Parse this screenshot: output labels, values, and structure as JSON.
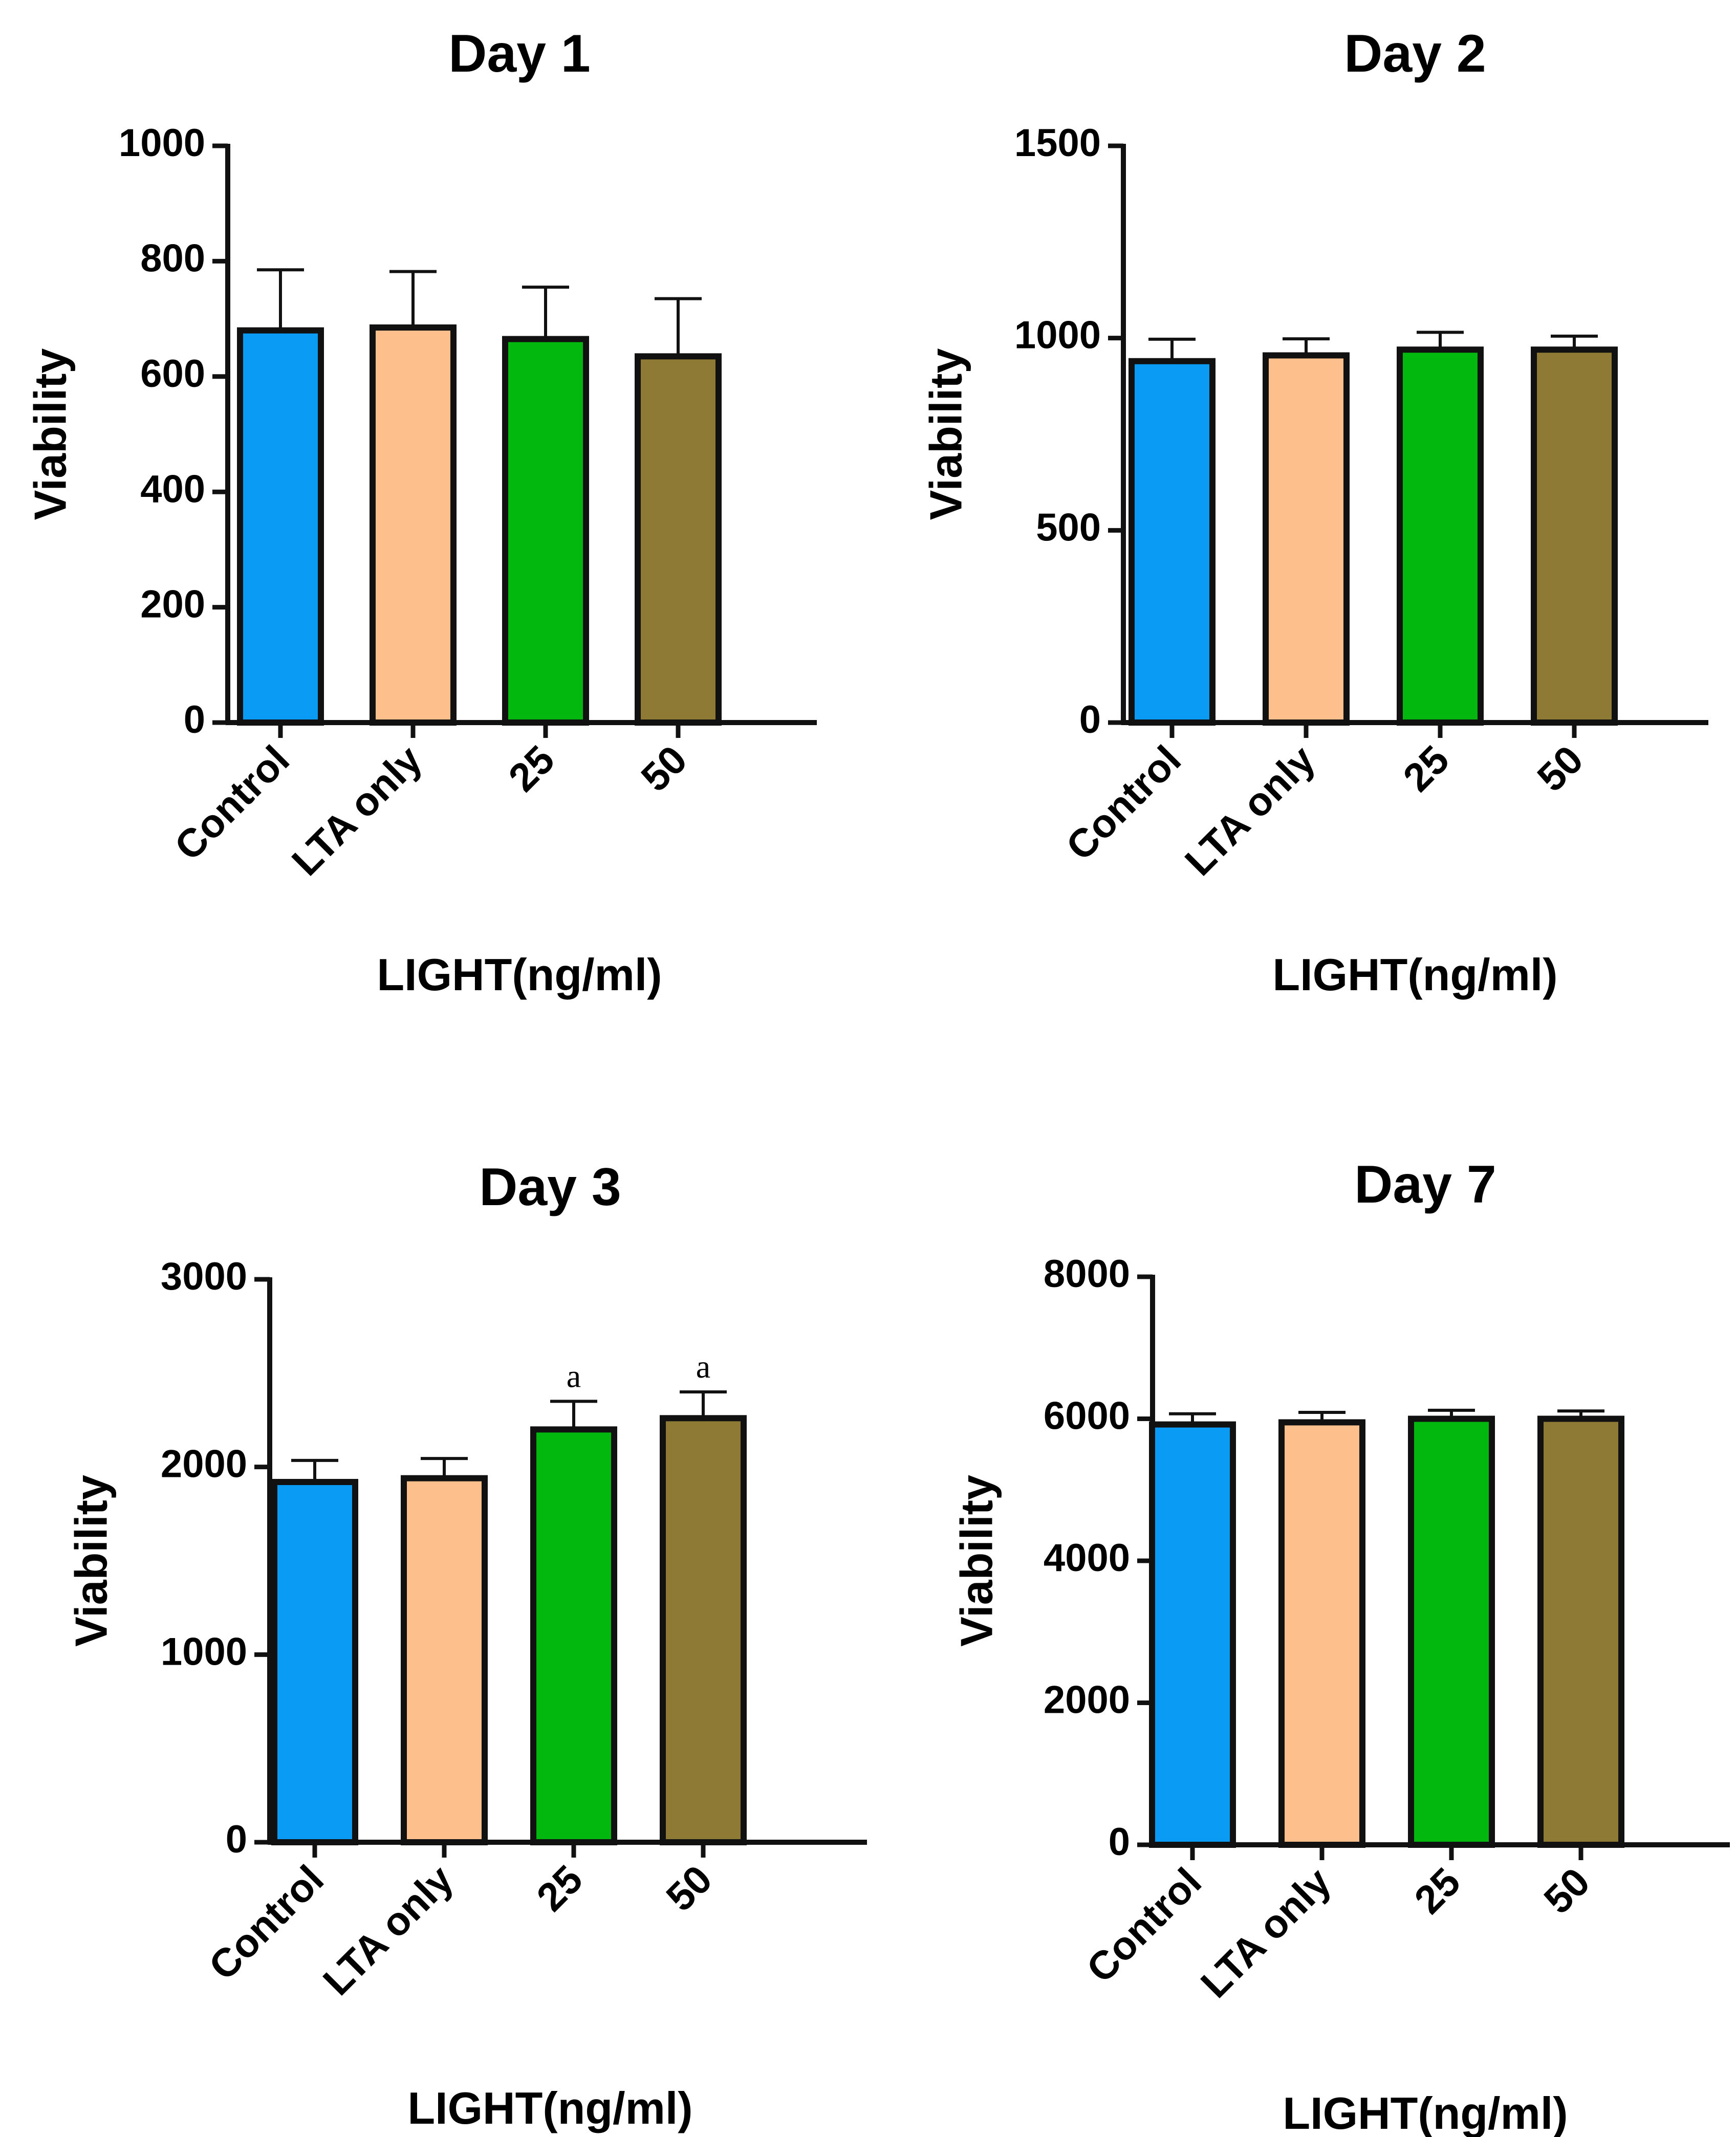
{
  "colors": {
    "control": "#0a9cf5",
    "lta_only": "#fdc08c",
    "light_25": "#02b80e",
    "light_50": "#8e7a34",
    "outline": "#111111"
  },
  "chart_data": [
    {
      "type": "bar",
      "title": "Day 1",
      "xlabel": "LIGHT(ng/ml)",
      "ylabel": "Viability",
      "categories": [
        "Control",
        "LTA only",
        "25",
        "50"
      ],
      "values": [
        680,
        685,
        665,
        635
      ],
      "errors": [
        105,
        97,
        90,
        100
      ],
      "annotations": [
        "",
        "",
        "",
        ""
      ],
      "ylim": [
        0,
        1000
      ],
      "yticks": [
        "0",
        "200",
        "400",
        "600",
        "800",
        "1000"
      ],
      "grid": false,
      "legend": "none"
    },
    {
      "type": "bar",
      "title": "Day 2",
      "xlabel": "LIGHT(ng/ml)",
      "ylabel": "Viability",
      "categories": [
        "Control",
        "LTA only",
        "25",
        "50"
      ],
      "values": [
        940,
        955,
        970,
        970
      ],
      "errors": [
        57,
        43,
        45,
        35
      ],
      "annotations": [
        "",
        "",
        "",
        ""
      ],
      "ylim": [
        0,
        1500
      ],
      "yticks": [
        "0",
        "500",
        "1000",
        "1500"
      ],
      "grid": false,
      "legend": "none"
    },
    {
      "type": "bar",
      "title": "Day 3",
      "xlabel": "LIGHT(ng/ml)",
      "ylabel": "Viability",
      "categories": [
        "Control",
        "LTA only",
        "25",
        "50"
      ],
      "values": [
        1920,
        1940,
        2200,
        2260
      ],
      "errors": [
        115,
        105,
        150,
        140
      ],
      "annotations": [
        "",
        "",
        "a",
        "a"
      ],
      "ylim": [
        0,
        3000
      ],
      "yticks": [
        "0",
        "1000",
        "2000",
        "3000"
      ],
      "grid": false,
      "legend": "none"
    },
    {
      "type": "bar",
      "title": "Day 7",
      "xlabel": "LIGHT(ng/ml)",
      "ylabel": "Viability",
      "categories": [
        "Control",
        "LTA only",
        "25",
        "50"
      ],
      "values": [
        5920,
        5950,
        6000,
        6000
      ],
      "errors": [
        150,
        140,
        120,
        110
      ],
      "annotations": [
        "",
        "",
        "",
        ""
      ],
      "ylim": [
        0,
        8000
      ],
      "yticks": [
        "0",
        "2000",
        "4000",
        "6000",
        "8000"
      ],
      "grid": false,
      "legend": "none"
    }
  ]
}
